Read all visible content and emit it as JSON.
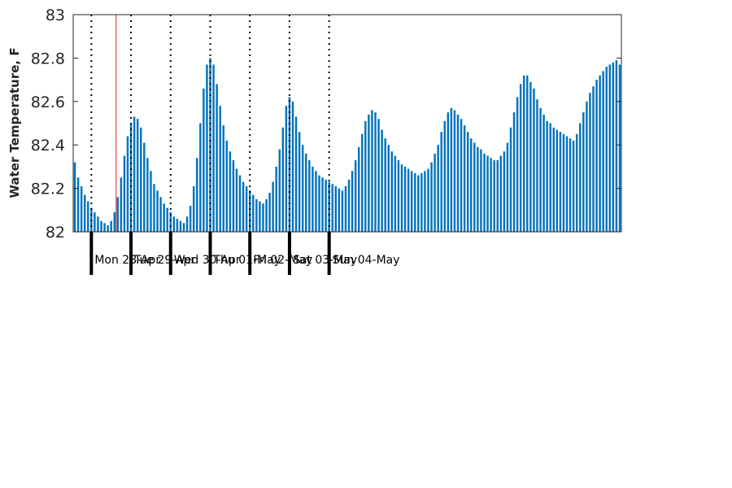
{
  "chart_data": {
    "type": "bar",
    "title": "",
    "xlabel": "",
    "ylabel": "Water Temperature, F",
    "ylim": [
      82,
      83
    ],
    "yticks": [
      "82",
      "82.2",
      "82.4",
      "82.6",
      "82.8",
      "83"
    ],
    "grid": false,
    "bar_color": "#0072bd",
    "marker_color": "#e41a1c",
    "day_labels": [
      "Mon 28-Apr",
      "Tue 29-Apr",
      "Wed 30-Apr",
      "Thu 01-May",
      "Fri 02-May",
      "Sat 03-May",
      "Sun 04-May"
    ],
    "hours_per_bar": 2,
    "start_hour_offset": -11,
    "current_time_hour": 15,
    "series": [
      {
        "values": [
          82.32,
          82.25,
          82.21,
          82.17,
          82.14,
          82.11,
          82.09,
          82.07,
          82.05,
          82.04,
          82.03,
          82.05,
          82.09,
          82.16,
          82.25,
          82.35,
          82.44,
          82.5,
          82.53,
          82.52,
          82.48,
          82.41,
          82.34,
          82.28,
          82.22,
          82.19,
          82.16,
          82.13,
          82.11,
          82.09,
          82.07,
          82.06,
          82.05,
          82.04,
          82.07,
          82.12,
          82.21,
          82.34,
          82.5,
          82.66,
          82.77,
          82.8,
          82.77,
          82.68,
          82.58,
          82.49,
          82.42,
          82.37,
          82.33,
          82.29,
          82.26,
          82.23,
          82.21,
          82.19,
          82.17,
          82.15,
          82.14,
          82.13,
          82.15,
          82.18,
          82.23,
          82.3,
          82.38,
          82.48,
          82.58,
          82.62,
          82.6,
          82.53,
          82.46,
          82.4,
          82.36,
          82.33,
          82.3,
          82.28,
          82.26,
          82.25,
          82.24,
          82.23,
          82.22,
          82.21,
          82.2,
          82.19,
          82.21,
          82.24,
          82.28,
          82.33,
          82.39,
          82.45,
          82.51,
          82.54,
          82.56,
          82.55,
          82.52,
          82.47,
          82.43,
          82.4,
          82.37,
          82.35,
          82.33,
          82.31,
          82.3,
          82.29,
          82.28,
          82.27,
          82.26,
          82.27,
          82.28,
          82.29,
          82.32,
          82.36,
          82.4,
          82.46,
          82.51,
          82.55,
          82.57,
          82.56,
          82.54,
          82.52,
          82.49,
          82.46,
          82.43,
          82.41,
          82.39,
          82.38,
          82.36,
          82.35,
          82.34,
          82.33,
          82.33,
          82.35,
          82.37,
          82.41,
          82.48,
          82.55,
          82.62,
          82.68,
          82.72,
          82.72,
          82.69,
          82.66,
          82.61,
          82.57,
          82.54,
          82.51,
          82.5,
          82.48,
          82.47,
          82.46,
          82.45,
          82.44,
          82.43,
          82.42,
          82.45,
          82.5,
          82.55,
          82.6,
          82.64,
          82.67,
          82.7,
          82.72,
          82.74,
          82.76,
          82.77,
          82.78,
          82.79,
          82.77
        ]
      }
    ]
  }
}
